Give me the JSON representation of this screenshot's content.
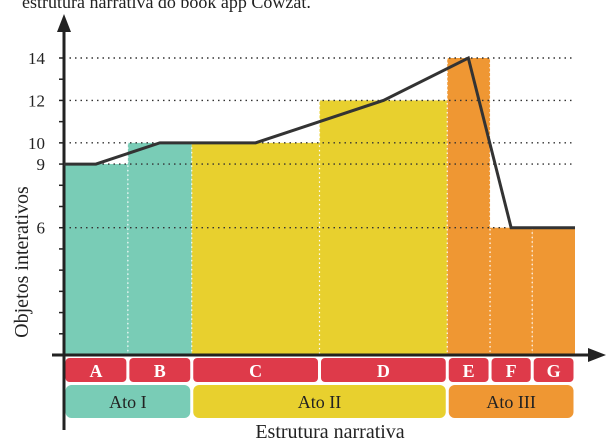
{
  "caption_fragment": "estrutura narrativa do book app Cowzat.",
  "chart_data": {
    "type": "bar",
    "xlabel": "Estrutura narrativa",
    "ylabel": "Objetos interativos",
    "y_ticks_labeled": [
      6,
      9,
      10,
      12,
      14
    ],
    "y_ticks_minor": [
      1,
      2,
      3,
      4,
      5,
      6,
      7,
      8,
      9,
      10,
      11,
      12,
      13,
      14
    ],
    "ylim": [
      0,
      14
    ],
    "grid": "dotted reference lines at labeled ticks",
    "categories": [
      "A",
      "B",
      "C",
      "D",
      "E",
      "F",
      "G"
    ],
    "bars": [
      {
        "label": "A",
        "value": 9,
        "start": 0,
        "end": 1,
        "color": "#79ccb6"
      },
      {
        "label": "B",
        "value": 10,
        "start": 1,
        "end": 2,
        "color": "#79ccb6"
      },
      {
        "label": "C",
        "value": 10,
        "start": 2,
        "end": 4,
        "color": "#e8d02e"
      },
      {
        "label": "D",
        "value": 12,
        "start": 4,
        "end": 6,
        "color": "#e8d02e"
      },
      {
        "label": "E",
        "value": 14,
        "start": 6,
        "end": 6.67,
        "color": "#ef9733"
      },
      {
        "label": "F",
        "value": 6,
        "start": 6.67,
        "end": 7.33,
        "color": "#ef9733"
      },
      {
        "label": "G",
        "value": 6,
        "start": 7.33,
        "end": 8,
        "color": "#ef9733"
      }
    ],
    "line": [
      {
        "x": 0,
        "y": 9
      },
      {
        "x": 0.5,
        "y": 9
      },
      {
        "x": 1.5,
        "y": 10
      },
      {
        "x": 3,
        "y": 10
      },
      {
        "x": 5,
        "y": 12
      },
      {
        "x": 6.33,
        "y": 14
      },
      {
        "x": 7,
        "y": 6
      },
      {
        "x": 8,
        "y": 6
      }
    ],
    "acts": [
      {
        "label": "Ato I",
        "start": 0,
        "end": 2,
        "color": "#79ccb6"
      },
      {
        "label": "Ato II",
        "start": 2,
        "end": 6,
        "color": "#e8d02e"
      },
      {
        "label": "Ato III",
        "start": 6,
        "end": 8,
        "color": "#ef9733"
      }
    ],
    "category_color": "#de3a4a",
    "line_color": "#333333"
  }
}
